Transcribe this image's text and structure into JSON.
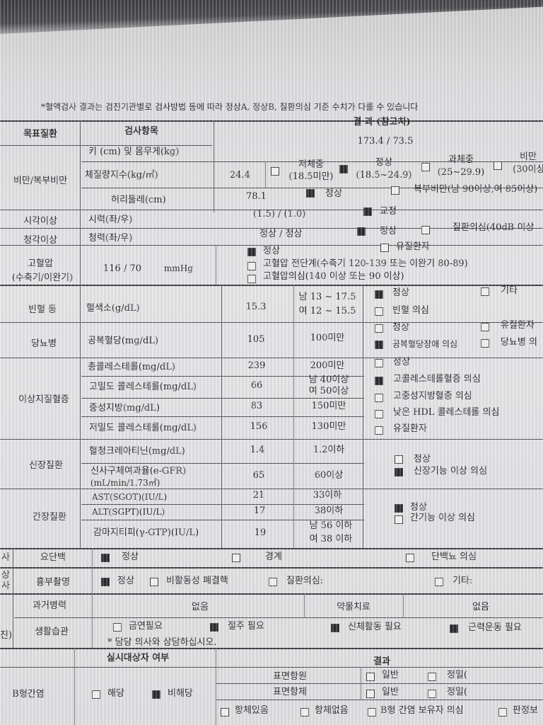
{
  "note": "*혈액검사 결과는 검진기관별로 검사방법 등에 따라 정상A, 정상B, 질환의심 기준 수치가 다를 수 있습니다",
  "header": {
    "target": "목표질환",
    "item": "검사항목",
    "result": "결 과 (참고치)"
  },
  "obesity": {
    "label": "비만/복부비만",
    "hw_label": "키 (cm) 및 몸무게(kg)",
    "hw_value": "173.4 / 73.5",
    "bmi_label": "체질량지수(kg/㎡)",
    "bmi_value": "24.4",
    "bmi_options": [
      {
        "label": "저체중",
        "range": "(18.5미만)",
        "checked": false
      },
      {
        "label": "정상",
        "range": "(18.5~24.9)",
        "checked": true
      },
      {
        "label": "과체중",
        "range": "(25~29.9)",
        "checked": false
      },
      {
        "label": "비만",
        "range": "(30이상",
        "checked": false
      }
    ],
    "waist_label": "허리둘레(cm)",
    "waist_value": "78.1",
    "waist_options": [
      {
        "label": "정상",
        "checked": true
      },
      {
        "label": "복부비만(남 90이상,여 85이상)",
        "checked": false
      }
    ]
  },
  "vision": {
    "label": "시각이상",
    "item": "시력(좌/우)",
    "value": "(1.5) / (1.0)",
    "option": {
      "label": "교정",
      "checked": true
    }
  },
  "hearing": {
    "label": "청각이상",
    "item": "청력(좌/우)",
    "value": "정상 / 정상",
    "options": [
      {
        "label": "정상",
        "checked": true
      },
      {
        "label": "질환의심(40dB 이상",
        "checked": false
      }
    ]
  },
  "bp": {
    "label": "고혈압",
    "sublabel": "(수축기/이완기)",
    "value": "116 / 70",
    "unit": "mmHg",
    "options": [
      {
        "label": "정상",
        "checked": true
      },
      {
        "label": "유질환자",
        "checked": false
      },
      {
        "label": "고혈압 전단계(수축기 120-139 또는 이완기 80-89)",
        "checked": false
      },
      {
        "label": "고혈압의심(140 이상 또는 90 이상)",
        "checked": false
      }
    ]
  },
  "anemia": {
    "label": "빈혈 등",
    "item": "혈색소(g/dL)",
    "value": "15.3",
    "ref1": "남 13 ~ 17.5",
    "ref2": "여 12 ~ 15.5",
    "options": [
      {
        "label": "정상",
        "checked": true
      },
      {
        "label": "기타",
        "checked": false
      },
      {
        "label": "빈혈 의심",
        "checked": false
      }
    ]
  },
  "diabetes": {
    "label": "당뇨병",
    "item": "공복혈당(mg/dL)",
    "value": "105",
    "ref": "100미만",
    "options": [
      {
        "label": "정상",
        "checked": false
      },
      {
        "label": "유질환자",
        "checked": false
      },
      {
        "label": "공복혈당장애 의심",
        "checked": true
      },
      {
        "label": "당뇨병 의",
        "checked": false
      }
    ]
  },
  "lipid": {
    "label": "이상지질혈증",
    "rows": [
      {
        "item": "총콜레스테롤(mg/dL)",
        "value": "239",
        "ref": "200미만"
      },
      {
        "item": "고밀도 콜레스테롤(mg/dL)",
        "value": "66",
        "ref": "남 40이상",
        "ref2": "여 50이상"
      },
      {
        "item": "중성지방(mg/dL)",
        "value": "83",
        "ref": "150미만"
      },
      {
        "item": "저밀도 콜레스테롤(mg/dL)",
        "value": "156",
        "ref": "130미만"
      }
    ],
    "options": [
      {
        "label": "정상",
        "checked": false
      },
      {
        "label": "고콜레스테롤혈증 의심",
        "checked": true
      },
      {
        "label": "고중성지방혈증 의심",
        "checked": false
      },
      {
        "label": "낮은 HDL 콜레스테롤 의심",
        "checked": false
      },
      {
        "label": "유질환자",
        "checked": false
      }
    ]
  },
  "kidney": {
    "label": "신장질환",
    "rows": [
      {
        "item": "혈청크레아티닌(mg/dL)",
        "value": "1.4",
        "ref": "1.2이하"
      },
      {
        "item": "신사구체여과율(e-GFR)",
        "item2": "(mL/min/1.73㎡)",
        "value": "65",
        "ref": "60이상"
      }
    ],
    "options": [
      {
        "label": "정상",
        "checked": false
      },
      {
        "label": "신장기능 이상 의심",
        "checked": true
      }
    ]
  },
  "liver": {
    "label": "간장질환",
    "rows": [
      {
        "item": "AST(SGOT)(IU/L)",
        "value": "21",
        "ref": "33이하"
      },
      {
        "item": "ALT(SGPT)(IU/L)",
        "value": "17",
        "ref": "38이하"
      },
      {
        "item": "감마지티피(γ-GTP)(IU/L)",
        "value": "19",
        "ref": "남 56 이하",
        "ref2": "여 38 이하"
      }
    ],
    "options": [
      {
        "label": "정상",
        "checked": true
      },
      {
        "label": "간기능 이상 의심",
        "checked": false
      }
    ]
  },
  "urine": {
    "side": "사",
    "label": "요단백",
    "options": [
      {
        "label": "정상",
        "checked": true
      },
      {
        "label": "경계",
        "checked": false
      },
      {
        "label": "단백뇨 의심",
        "checked": false
      }
    ]
  },
  "chest": {
    "side": "상\n사",
    "label": "흉부촬영",
    "options": [
      {
        "label": "정상",
        "checked": true
      },
      {
        "label": "비활동성 폐결핵",
        "checked": false
      },
      {
        "label": "질환의심:",
        "checked": false
      },
      {
        "label": "기타:",
        "checked": false
      }
    ]
  },
  "history": {
    "side": "진)",
    "label": "과거병력",
    "value": "없음",
    "med_label": "약물치료",
    "med_value": "없음"
  },
  "lifestyle": {
    "label": "생활습관",
    "options": [
      {
        "label": "금연필요",
        "checked": false
      },
      {
        "label": "절주 필요",
        "checked": true
      },
      {
        "label": "신체활동 필요",
        "checked": true
      },
      {
        "label": "근력운동 필요",
        "checked": true
      }
    ],
    "note": "* 담당 의사와 상담하십시오."
  },
  "hepb": {
    "label": "B형간염",
    "target_header": "실시대상자 여부",
    "result_header": "결과",
    "target_options": [
      {
        "label": "해당",
        "checked": false
      },
      {
        "label": "비해당",
        "checked": true
      }
    ],
    "antigen": "표면항원",
    "antibody": "표면항체",
    "antigen_options": [
      {
        "label": "일반",
        "checked": false
      },
      {
        "label": "정밀(",
        "checked": false
      }
    ],
    "antibody_options": [
      {
        "label": "일반",
        "checked": false
      },
      {
        "label": "정밀(",
        "checked": false
      }
    ],
    "result_options": [
      {
        "label": "항체있음",
        "checked": false
      },
      {
        "label": "항체없음",
        "checked": false
      },
      {
        "label": "B형 간염 보유자 의심",
        "checked": false
      },
      {
        "label": "판정보",
        "checked": false
      }
    ]
  }
}
